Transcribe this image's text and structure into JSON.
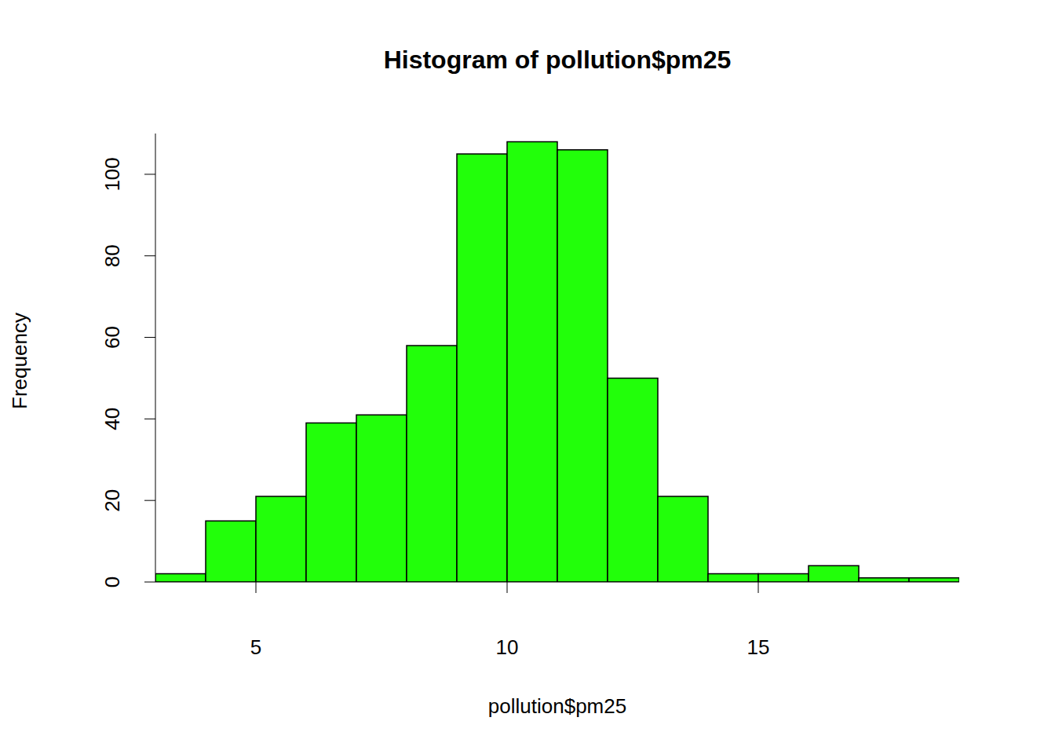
{
  "chart_data": {
    "type": "histogram",
    "title": "Histogram of pollution$pm25",
    "x_label": "pollution$pm25",
    "y_label": "Frequency",
    "bins": [
      3,
      4,
      5,
      6,
      7,
      8,
      9,
      10,
      11,
      12,
      13,
      14,
      15,
      16,
      17,
      18,
      19
    ],
    "values": [
      2,
      15,
      21,
      39,
      41,
      58,
      105,
      108,
      106,
      50,
      21,
      2,
      2,
      4,
      1,
      1
    ],
    "color": "#22ff0a",
    "xlim": [
      3,
      19
    ],
    "xticks": [
      5,
      10,
      15
    ],
    "ylim": [
      0,
      110
    ],
    "yticks": [
      0,
      20,
      40,
      60,
      80,
      100
    ],
    "grid": false
  }
}
